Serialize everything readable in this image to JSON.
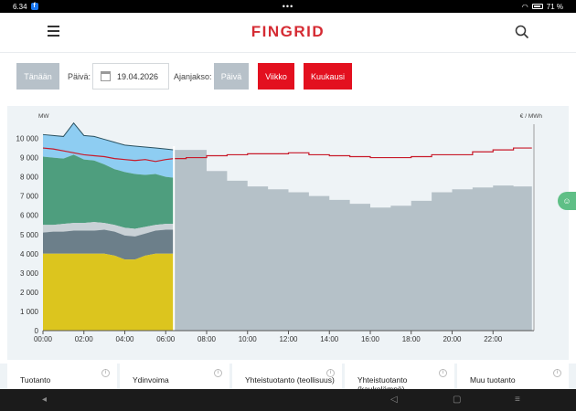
{
  "status_bar": {
    "time": "6.34",
    "app_badge": "f",
    "dots": "•••",
    "battery": "71 %"
  },
  "header": {
    "logo": "FINGRID",
    "icons": [
      "menu-icon",
      "search-icon"
    ]
  },
  "controls": {
    "today_label": "Tänään",
    "date_label": "Päivä:",
    "date_value": "19.04.2026",
    "period_label": "Ajanjakso:",
    "period_day": "Päivä",
    "period_week": "Viikko",
    "period_month": "Kuukausi"
  },
  "colors": {
    "accent": "#e3101f",
    "brand": "#d52b33",
    "selected_grey": "#b7c1c9"
  },
  "chart_data": {
    "type": "area",
    "ylabel_left": "MW",
    "ylabel_right": "€ / MWh",
    "yticks": [
      "0",
      "1 000",
      "2 000",
      "3 000",
      "4 000",
      "5 000",
      "6 000",
      "7 000",
      "8 000",
      "9 000",
      "10 000"
    ],
    "xticks": [
      "00:00",
      "02:00",
      "04:00",
      "06:00",
      "08:00",
      "10:00",
      "12:00",
      "14:00",
      "16:00",
      "18:00",
      "20:00",
      "22:00"
    ],
    "ylim": [
      0,
      10500
    ],
    "xlim": [
      0,
      24
    ],
    "now_hour": 6.4,
    "stacked_measured": {
      "x": [
        0,
        0.5,
        1,
        1.5,
        2,
        2.5,
        3,
        3.5,
        4,
        4.5,
        5,
        5.5,
        6,
        6.4
      ],
      "series": [
        {
          "name": "nuclear",
          "color": "#dcc51e",
          "values": [
            4000,
            4000,
            4000,
            4000,
            4000,
            4000,
            4000,
            3900,
            3700,
            3700,
            3900,
            4000,
            4000,
            4000
          ]
        },
        {
          "name": "chp",
          "color": "#6c7f8a",
          "top": [
            5100,
            5150,
            5150,
            5200,
            5200,
            5200,
            5250,
            5150,
            4950,
            4900,
            5050,
            5200,
            5250,
            5250
          ]
        },
        {
          "name": "light_band",
          "color": "#c9d1d6",
          "top": [
            5500,
            5500,
            5550,
            5600,
            5600,
            5650,
            5600,
            5500,
            5350,
            5300,
            5400,
            5500,
            5550,
            5550
          ]
        },
        {
          "name": "wind",
          "color": "#4e9e7e",
          "top": [
            9050,
            9000,
            8950,
            9150,
            8900,
            8850,
            8650,
            8400,
            8250,
            8150,
            8100,
            8150,
            8000,
            7950
          ]
        },
        {
          "name": "consumption",
          "color": "#8ecdf2",
          "top": [
            10200,
            10150,
            10100,
            10800,
            10150,
            10100,
            9950,
            9800,
            9650,
            9600,
            9550,
            9500,
            9450,
            9400
          ]
        }
      ]
    },
    "forecast_step": {
      "color": "#b5c1c8",
      "hours": [
        6.4,
        7,
        8,
        9,
        10,
        11,
        12,
        13,
        14,
        15,
        16,
        17,
        18,
        19,
        20,
        21,
        22,
        23,
        23.9
      ],
      "values": [
        9400,
        9400,
        8300,
        7800,
        7500,
        7350,
        7200,
        7000,
        6800,
        6600,
        6400,
        6500,
        6750,
        7200,
        7350,
        7450,
        7550,
        7500,
        7500
      ]
    },
    "price_line": {
      "color": "#c81a2a",
      "x": [
        0,
        0.5,
        1,
        1.5,
        2,
        2.5,
        3,
        3.5,
        4,
        4.5,
        5,
        5.5,
        6,
        6.4,
        7,
        8,
        9,
        10,
        11,
        12,
        13,
        14,
        15,
        16,
        17,
        18,
        19,
        20,
        21,
        22,
        23,
        23.9
      ],
      "values": [
        9500,
        9450,
        9350,
        9250,
        9150,
        9100,
        9050,
        8950,
        8900,
        8850,
        8900,
        8800,
        8900,
        8950,
        9000,
        9100,
        9150,
        9200,
        9200,
        9250,
        9150,
        9100,
        9050,
        9000,
        9000,
        9050,
        9150,
        9150,
        9300,
        9400,
        9500,
        9500
      ]
    }
  },
  "cards": [
    {
      "title": "Tuotanto"
    },
    {
      "title": "Ydinvoima"
    },
    {
      "title": "Yhteistuotanto (teollisuus)"
    },
    {
      "title": "Yhteistuotanto (kaukolämpö)"
    },
    {
      "title": "Muu tuotanto"
    }
  ]
}
